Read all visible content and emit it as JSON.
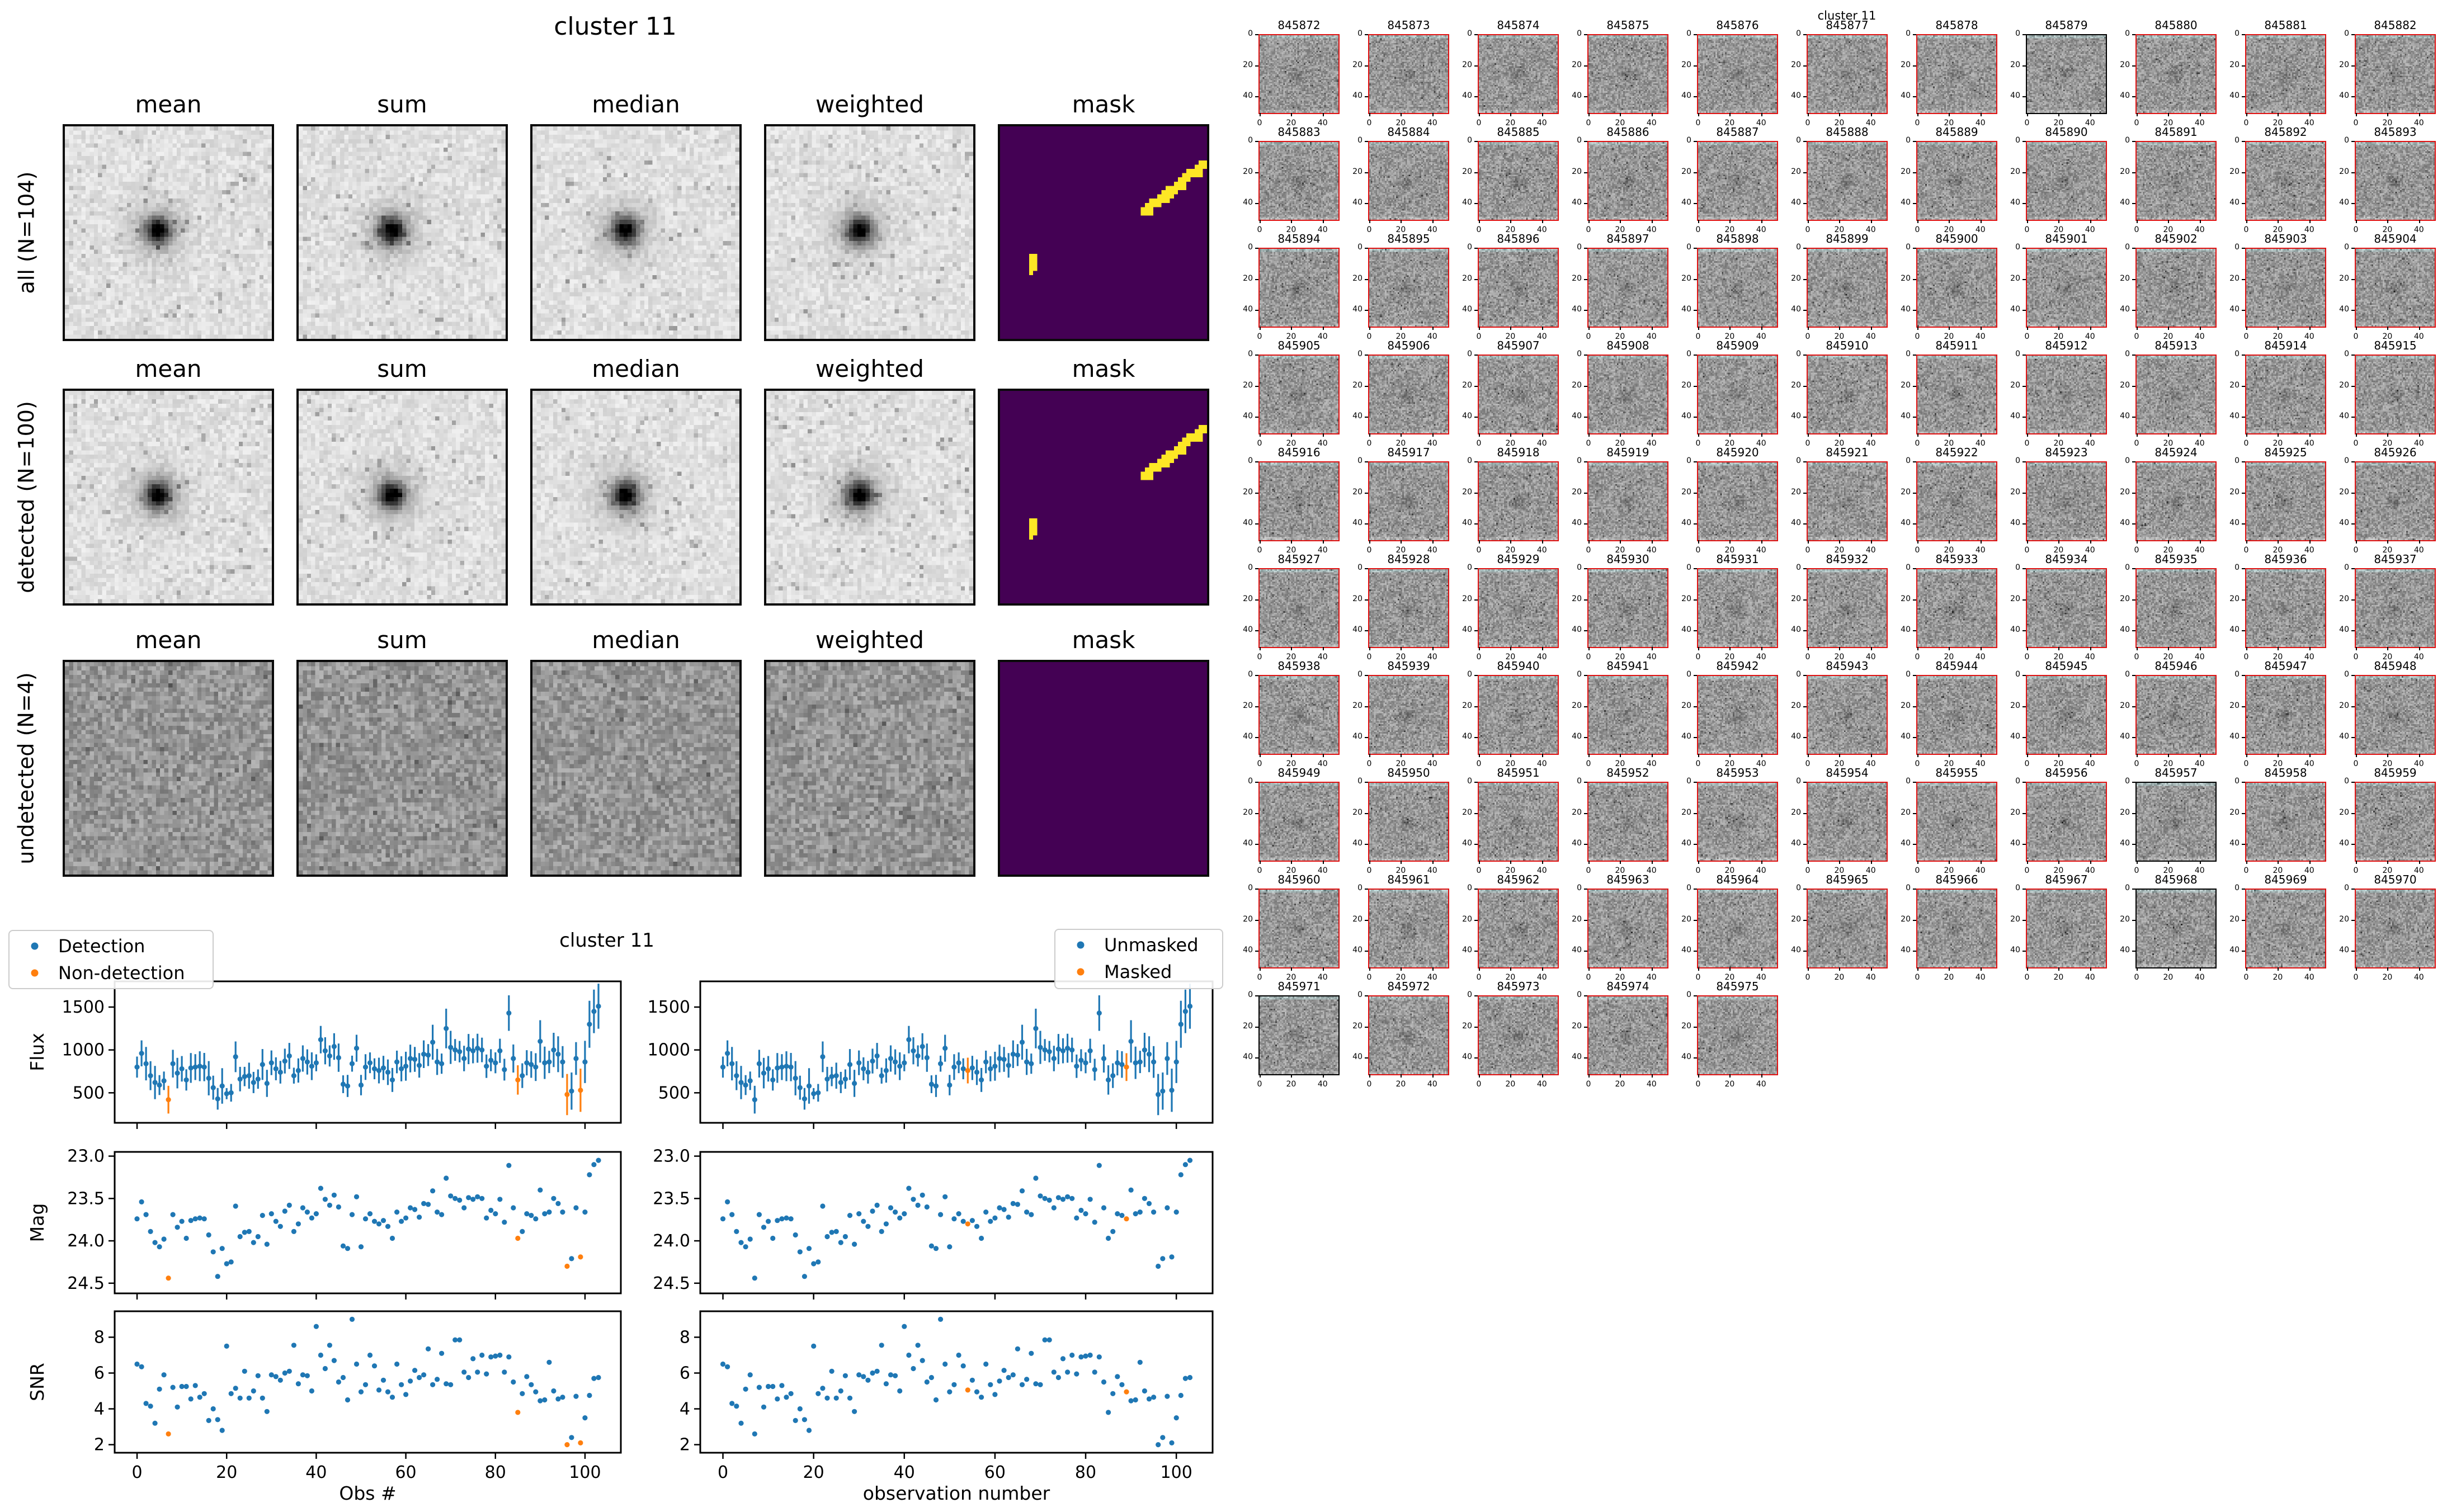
{
  "colors": {
    "detection_blue": "#1f77b4",
    "nondetection_orange": "#ff7f0e",
    "mask_purple": "#440154",
    "mask_yellow": "#fde725",
    "stamp_border_red": "#e01212",
    "stamp_border_black": "#000000",
    "spine_black": "#000000",
    "legend_edge": "#cccccc"
  },
  "stack_figure": {
    "suptitle": "cluster 11",
    "col_headers": [
      "mean",
      "sum",
      "median",
      "weighted",
      "mask"
    ],
    "rows": [
      {
        "label": "all (N=104)",
        "blob": true,
        "streak": true
      },
      {
        "label": "detected (N=100)",
        "blob": true,
        "streak": true
      },
      {
        "label": "undetected (N=4)",
        "blob": false,
        "streak": false
      }
    ],
    "mask_marks": {
      "streak_from": [
        34,
        19
      ],
      "streak_to": [
        48,
        8
      ],
      "speck": [
        41,
        16
      ],
      "dot": [
        7,
        30,
        2,
        4
      ]
    }
  },
  "lightcurve_figure": {
    "suptitle": "cluster 11",
    "ylabels": [
      "Flux",
      "Mag",
      "SNR"
    ],
    "xlabel_left": "Obs #",
    "xlabel_right": "observation number",
    "legend_left": [
      "Detection",
      "Non-detection"
    ],
    "legend_right": [
      "Unmasked",
      "Masked"
    ],
    "x_tick_labels": [
      "0",
      "20",
      "40",
      "60",
      "80",
      "100"
    ]
  },
  "chart_data": {
    "type": "scatter",
    "title": "cluster 11",
    "x_is_index": true,
    "xlim": [
      -5,
      108
    ],
    "x_ticks": [
      0,
      20,
      40,
      60,
      80,
      100
    ],
    "panels": [
      {
        "name": "Flux",
        "ylim_bottom": 150,
        "ylim_top": 1800,
        "yticks": [
          500,
          1000,
          1500
        ],
        "ytick_labels": [
          "500",
          "1000",
          "1500"
        ],
        "errorbars": true
      },
      {
        "name": "Mag",
        "ylim_bottom": 24.62,
        "ylim_top": 22.95,
        "yticks": [
          23.0,
          23.5,
          24.0,
          24.5
        ],
        "ytick_labels": [
          "23.0",
          "23.5",
          "24.0",
          "24.5"
        ],
        "errorbars": false
      },
      {
        "name": "SNR",
        "ylim_bottom": 1.55,
        "ylim_top": 9.45,
        "yticks": [
          2,
          4,
          6,
          8
        ],
        "ytick_labels": [
          "2",
          "4",
          "6",
          "8"
        ],
        "errorbars": false
      }
    ],
    "flux": [
      800,
      960,
      840,
      700,
      620,
      590,
      640,
      420,
      840,
      730,
      780,
      650,
      790,
      800,
      810,
      800,
      670,
      560,
      430,
      580,
      490,
      500,
      920,
      660,
      690,
      700,
      620,
      660,
      830,
      610,
      850,
      780,
      740,
      870,
      930,
      700,
      760,
      900,
      860,
      810,
      850,
      1120,
      990,
      930,
      1040,
      910,
      600,
      580,
      840,
      1020,
      590,
      800,
      850,
      780,
      760,
      790,
      740,
      650,
      860,
      780,
      810,
      900,
      890,
      820,
      950,
      940,
      1090,
      860,
      840,
      1250,
      1030,
      1000,
      980,
      900,
      1010,
      990,
      1020,
      1000,
      810,
      880,
      850,
      990,
      770,
      1430,
      900,
      650,
      700,
      850,
      830,
      800,
      1100,
      850,
      860,
      1000,
      950,
      860,
      480,
      520,
      900,
      530,
      860,
      1300,
      1450,
      1510
    ],
    "flux_err": [
      123,
      151,
      195,
      169,
      194,
      116,
      108,
      162,
      162,
      178,
      149,
      124,
      174,
      151,
      174,
      165,
      200,
      140,
      126,
      207,
      65,
      103,
      179,
      143,
      113,
      152,
      124,
      113,
      180,
      158,
      144,
      134,
      132,
      145,
      152,
      93,
      141,
      153,
      147,
      162,
      99,
      160,
      158,
      123,
      155,
      165,
      104,
      129,
      93,
      157,
      119,
      150,
      121,
      122,
      150,
      141,
      149,
      140,
      132,
      146,
      169,
      162,
      145,
      143,
      161,
      128,
      204,
      152,
      118,
      231,
      193,
      127,
      125,
      149,
      176,
      146,
      169,
      143,
      136,
      128,
      122,
      141,
      127,
      207,
      164,
      171,
      144,
      147,
      155,
      162,
      247,
      189,
      130,
      200,
      209,
      185,
      240,
      217,
      191,
      252,
      246,
      274,
      254,
      263
    ],
    "mag": [
      23.74,
      23.54,
      23.69,
      23.89,
      24.02,
      24.07,
      23.98,
      24.44,
      23.69,
      23.84,
      23.77,
      23.97,
      23.76,
      23.74,
      23.73,
      23.74,
      23.93,
      24.13,
      24.42,
      24.09,
      24.27,
      24.25,
      23.59,
      23.95,
      23.9,
      23.89,
      24.02,
      23.95,
      23.7,
      24.04,
      23.68,
      23.77,
      23.83,
      23.65,
      23.58,
      23.89,
      23.8,
      23.61,
      23.66,
      23.73,
      23.68,
      23.38,
      23.51,
      23.58,
      23.46,
      23.6,
      24.06,
      24.09,
      23.69,
      23.48,
      24.07,
      23.74,
      23.68,
      23.77,
      23.8,
      23.76,
      23.83,
      23.97,
      23.66,
      23.77,
      23.73,
      23.61,
      23.63,
      23.72,
      23.56,
      23.57,
      23.41,
      23.66,
      23.69,
      23.26,
      23.47,
      23.5,
      23.52,
      23.61,
      23.49,
      23.51,
      23.48,
      23.5,
      23.73,
      23.64,
      23.68,
      23.51,
      23.78,
      23.11,
      23.61,
      23.97,
      23.89,
      23.68,
      23.7,
      23.74,
      23.4,
      23.68,
      23.66,
      23.5,
      23.56,
      23.66,
      24.3,
      24.21,
      23.61,
      24.19,
      23.66,
      23.22,
      23.1,
      23.05
    ],
    "snr": [
      6.5,
      6.35,
      4.3,
      4.15,
      3.2,
      5.1,
      5.9,
      2.6,
      5.2,
      4.1,
      5.25,
      5.25,
      4.55,
      5.3,
      4.65,
      4.85,
      3.35,
      4.0,
      3.4,
      2.8,
      7.5,
      4.85,
      5.15,
      4.6,
      6.1,
      4.6,
      5.0,
      5.85,
      4.6,
      3.85,
      5.9,
      5.8,
      5.6,
      6.0,
      6.1,
      7.55,
      5.4,
      5.9,
      5.85,
      5.0,
      8.6,
      7.0,
      6.25,
      7.55,
      6.7,
      5.5,
      5.75,
      4.5,
      9.0,
      6.5,
      4.95,
      5.35,
      7.0,
      6.4,
      5.05,
      5.6,
      4.95,
      4.65,
      6.5,
      5.35,
      4.8,
      5.55,
      6.15,
      5.75,
      5.9,
      7.35,
      5.35,
      5.65,
      7.1,
      5.4,
      5.35,
      7.85,
      7.85,
      6.05,
      5.75,
      6.8,
      6.05,
      7.0,
      5.95,
      6.9,
      6.95,
      7.0,
      6.05,
      6.9,
      5.5,
      3.8,
      4.85,
      5.8,
      5.35,
      4.95,
      4.45,
      4.5,
      6.6,
      5.0,
      4.55,
      4.65,
      2.0,
      2.4,
      4.7,
      2.1,
      3.5,
      4.75,
      5.7,
      5.75
    ],
    "nondetection_idx": [
      7,
      85,
      96,
      99
    ],
    "masked_idx": [
      54,
      89
    ]
  },
  "stamp_grid": {
    "suptitle": "cluster 11",
    "cols": 11,
    "x_tick_labels": [
      "0",
      "20",
      "40"
    ],
    "y_tick_labels": [
      "0",
      "20",
      "40"
    ],
    "tick_values": [
      0,
      20,
      40
    ],
    "undetected_ids": [
      845879,
      845957,
      845968,
      845971
    ],
    "ids": [
      845872,
      845873,
      845874,
      845875,
      845876,
      845877,
      845878,
      845879,
      845880,
      845881,
      845882,
      845883,
      845884,
      845885,
      845886,
      845887,
      845888,
      845889,
      845890,
      845891,
      845892,
      845893,
      845894,
      845895,
      845896,
      845897,
      845898,
      845899,
      845900,
      845901,
      845902,
      845903,
      845904,
      845905,
      845906,
      845907,
      845908,
      845909,
      845910,
      845911,
      845912,
      845913,
      845914,
      845915,
      845916,
      845917,
      845918,
      845919,
      845920,
      845921,
      845922,
      845923,
      845924,
      845925,
      845926,
      845927,
      845928,
      845929,
      845930,
      845931,
      845932,
      845933,
      845934,
      845935,
      845936,
      845937,
      845938,
      845939,
      845940,
      845941,
      845942,
      845943,
      845944,
      845945,
      845946,
      845947,
      845948,
      845949,
      845950,
      845951,
      845952,
      845953,
      845954,
      845955,
      845956,
      845957,
      845958,
      845959,
      845960,
      845961,
      845962,
      845963,
      845964,
      845965,
      845966,
      845967,
      845968,
      845969,
      845970,
      845971,
      845972,
      845973,
      845974,
      845975
    ]
  }
}
